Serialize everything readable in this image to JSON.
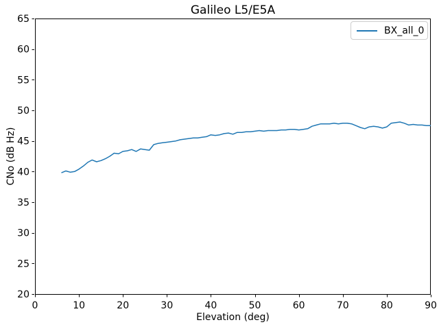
{
  "chart_data": {
    "type": "line",
    "title": "Galileo L5/E5A",
    "xlabel": "Elevation (deg)",
    "ylabel": "CNo (dB Hz)",
    "xlim": [
      0,
      90
    ],
    "ylim": [
      20,
      65
    ],
    "xticks": [
      0,
      10,
      20,
      30,
      40,
      50,
      60,
      70,
      80,
      90
    ],
    "yticks": [
      20,
      25,
      30,
      35,
      40,
      45,
      50,
      55,
      60,
      65
    ],
    "grid": false,
    "legend": {
      "position": "upper right",
      "entries": [
        "BX_all_0"
      ]
    },
    "colors": {
      "line": "#1f77b4",
      "spine": "#000000",
      "legend_border": "#cccccc",
      "background": "#ffffff"
    },
    "series": [
      {
        "name": "BX_all_0",
        "color": "#1f77b4",
        "x": [
          6,
          7,
          8,
          9,
          10,
          11,
          12,
          13,
          14,
          15,
          16,
          17,
          18,
          19,
          20,
          21,
          22,
          23,
          24,
          25,
          26,
          27,
          28,
          29,
          30,
          31,
          32,
          33,
          34,
          35,
          36,
          37,
          38,
          39,
          40,
          41,
          42,
          43,
          44,
          45,
          46,
          47,
          48,
          49,
          50,
          51,
          52,
          53,
          54,
          55,
          56,
          57,
          58,
          59,
          60,
          61,
          62,
          63,
          64,
          65,
          66,
          67,
          68,
          69,
          70,
          71,
          72,
          73,
          74,
          75,
          76,
          77,
          78,
          79,
          80,
          81,
          82,
          83,
          84,
          85,
          86,
          87,
          88,
          89,
          90
        ],
        "y": [
          39.8,
          40.1,
          39.9,
          40.0,
          40.4,
          40.9,
          41.5,
          41.9,
          41.6,
          41.8,
          42.1,
          42.5,
          43.0,
          42.9,
          43.3,
          43.4,
          43.6,
          43.3,
          43.7,
          43.6,
          43.5,
          44.4,
          44.6,
          44.7,
          44.8,
          44.9,
          45.0,
          45.2,
          45.3,
          45.4,
          45.5,
          45.5,
          45.6,
          45.7,
          46.0,
          45.9,
          46.0,
          46.2,
          46.3,
          46.1,
          46.4,
          46.4,
          46.5,
          46.5,
          46.6,
          46.7,
          46.6,
          46.7,
          46.7,
          46.7,
          46.8,
          46.8,
          46.9,
          46.9,
          46.8,
          46.9,
          47.0,
          47.4,
          47.6,
          47.8,
          47.8,
          47.8,
          47.9,
          47.8,
          47.9,
          47.9,
          47.8,
          47.5,
          47.2,
          47.0,
          47.3,
          47.4,
          47.3,
          47.1,
          47.3,
          47.9,
          48.0,
          48.1,
          47.9,
          47.6,
          47.7,
          47.6,
          47.6,
          47.5,
          47.5
        ]
      }
    ]
  }
}
